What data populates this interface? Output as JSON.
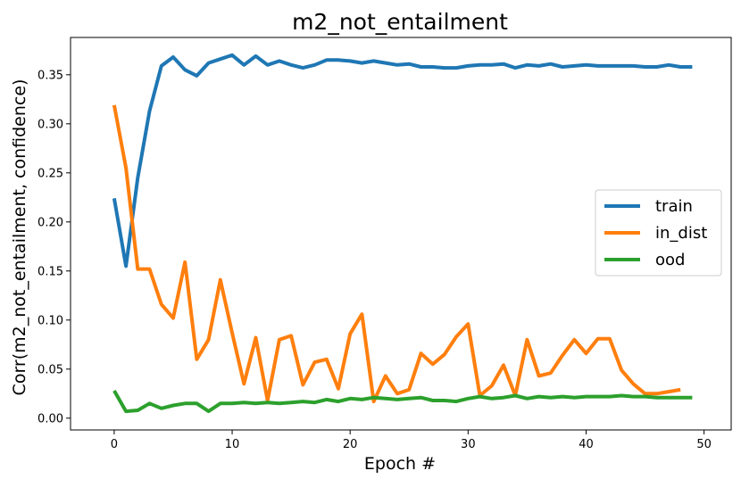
{
  "chart_data": {
    "type": "line",
    "title": "m2_not_entailment",
    "xlabel": "Epoch #",
    "ylabel": "Corr(m2_not_entailment, confidence)",
    "xlim": [
      -3.7,
      52.3
    ],
    "ylim": [
      -0.012,
      0.388
    ],
    "xticks": [
      0,
      10,
      20,
      30,
      40,
      50
    ],
    "yticks": [
      0.0,
      0.05,
      0.1,
      0.15,
      0.2,
      0.25,
      0.3,
      0.35
    ],
    "ytick_labels": [
      "0.00",
      "0.05",
      "0.10",
      "0.15",
      "0.20",
      "0.25",
      "0.30",
      "0.35"
    ],
    "grid": false,
    "legend_position": "center-right",
    "series": [
      {
        "name": "train",
        "color": "#1f77b4",
        "x": [
          0,
          1,
          2,
          3,
          4,
          5,
          6,
          7,
          8,
          9,
          10,
          11,
          12,
          13,
          14,
          15,
          16,
          17,
          18,
          19,
          20,
          21,
          22,
          23,
          24,
          25,
          26,
          27,
          28,
          29,
          30,
          31,
          32,
          33,
          34,
          35,
          36,
          37,
          38,
          39,
          40,
          41,
          42,
          43,
          44,
          45,
          46,
          47,
          48,
          49
        ],
        "values": [
          0.224,
          0.155,
          0.245,
          0.313,
          0.359,
          0.368,
          0.355,
          0.349,
          0.362,
          0.366,
          0.37,
          0.36,
          0.369,
          0.36,
          0.364,
          0.36,
          0.357,
          0.36,
          0.365,
          0.365,
          0.364,
          0.362,
          0.364,
          0.362,
          0.36,
          0.361,
          0.358,
          0.358,
          0.357,
          0.357,
          0.359,
          0.36,
          0.36,
          0.361,
          0.357,
          0.36,
          0.359,
          0.361,
          0.358,
          0.359,
          0.36,
          0.359,
          0.359,
          0.359,
          0.359,
          0.358,
          0.358,
          0.36,
          0.358,
          0.358
        ]
      },
      {
        "name": "in_dist",
        "color": "#ff7f0e",
        "x": [
          0,
          1,
          2,
          3,
          4,
          5,
          6,
          7,
          8,
          9,
          10,
          11,
          12,
          13,
          14,
          15,
          16,
          17,
          18,
          19,
          20,
          21,
          22,
          23,
          24,
          25,
          26,
          27,
          28,
          29,
          30,
          31,
          32,
          33,
          34,
          35,
          36,
          37,
          38,
          39,
          40,
          41,
          42,
          43,
          44,
          45,
          46,
          47,
          48
        ],
        "values": [
          0.319,
          0.255,
          0.152,
          0.152,
          0.116,
          0.102,
          0.159,
          0.06,
          0.08,
          0.141,
          0.087,
          0.035,
          0.082,
          0.018,
          0.08,
          0.084,
          0.034,
          0.057,
          0.06,
          0.03,
          0.086,
          0.106,
          0.017,
          0.043,
          0.025,
          0.029,
          0.066,
          0.055,
          0.065,
          0.083,
          0.096,
          0.023,
          0.033,
          0.054,
          0.023,
          0.08,
          0.043,
          0.046,
          0.064,
          0.08,
          0.066,
          0.081,
          0.081,
          0.049,
          0.035,
          0.025,
          0.025,
          0.027,
          0.029
        ]
      },
      {
        "name": "ood",
        "color": "#2ca02c",
        "x": [
          0,
          1,
          2,
          3,
          4,
          5,
          6,
          7,
          8,
          9,
          10,
          11,
          12,
          13,
          14,
          15,
          16,
          17,
          18,
          19,
          20,
          21,
          22,
          23,
          24,
          25,
          26,
          27,
          28,
          29,
          30,
          31,
          32,
          33,
          34,
          35,
          36,
          37,
          38,
          39,
          40,
          41,
          42,
          43,
          44,
          45,
          46,
          47,
          48,
          49
        ],
        "values": [
          0.028,
          0.007,
          0.008,
          0.015,
          0.01,
          0.013,
          0.015,
          0.015,
          0.007,
          0.015,
          0.015,
          0.016,
          0.015,
          0.016,
          0.015,
          0.016,
          0.017,
          0.016,
          0.019,
          0.017,
          0.02,
          0.019,
          0.021,
          0.02,
          0.019,
          0.02,
          0.021,
          0.018,
          0.018,
          0.017,
          0.02,
          0.022,
          0.02,
          0.021,
          0.023,
          0.02,
          0.022,
          0.021,
          0.022,
          0.021,
          0.022,
          0.022,
          0.022,
          0.023,
          0.022,
          0.022,
          0.021,
          0.021,
          0.021,
          0.021
        ]
      }
    ]
  }
}
